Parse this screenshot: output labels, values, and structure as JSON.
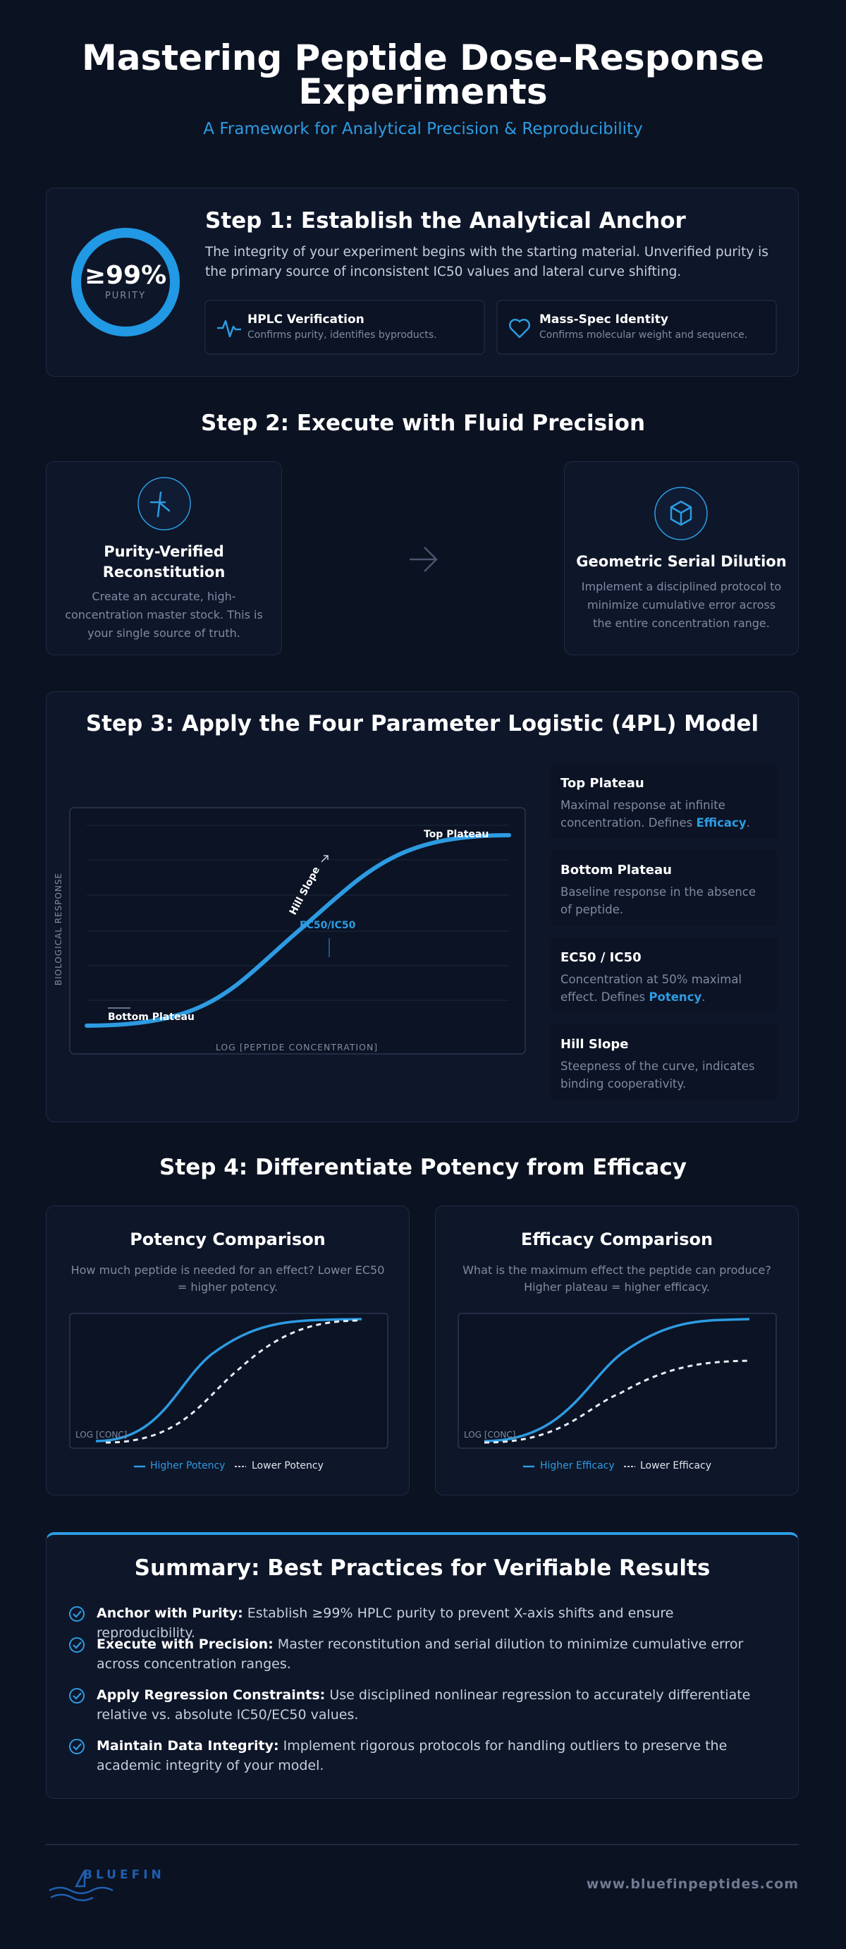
{
  "header": {
    "title": "Mastering Peptide Dose-Response Experiments",
    "subtitle": "A Framework for Analytical Precision & Reproducibility"
  },
  "step1": {
    "badge_value": "≥99%",
    "badge_label": "PURITY",
    "title": "Step 1: Establish the Analytical Anchor",
    "body": "The integrity of your experiment begins with the starting material. Unverified purity is the primary source of inconsistent IC50 values and lateral curve shifting.",
    "features": [
      {
        "title": "HPLC Verification",
        "text": "Confirms purity, identifies byproducts."
      },
      {
        "title": "Mass-Spec Identity",
        "text": "Confirms molecular weight and sequence."
      }
    ]
  },
  "step2": {
    "title": "Step 2: Execute with Fluid Precision",
    "cards": [
      {
        "title": "Purity-Verified Reconstitution",
        "text": "Create an accurate, high-concentration master stock. This is your single source of truth."
      },
      {
        "title": "Geometric Serial Dilution",
        "text": "Implement a disciplined protocol to minimize cumulative error across the entire concentration range."
      }
    ]
  },
  "step3": {
    "title": "Step 3: Apply the Four Parameter Logistic (4PL) Model",
    "chart": {
      "y_label": "BIOLOGICAL RESPONSE",
      "x_label": "LOG [PEPTIDE CONCENTRATION]",
      "top_label": "Top Plateau",
      "hill_label": "Hill Slope",
      "ec50_label": "EC50/IC50",
      "bottom_label": "Bottom Plateau"
    },
    "parameters": [
      {
        "title": "Top Plateau",
        "text": "Maximal response at infinite concentration. Defines ",
        "highlight": "Efficacy",
        "end": "."
      },
      {
        "title": "Bottom Plateau",
        "text": "Baseline response in the absence of peptide."
      },
      {
        "title": "EC50 / IC50",
        "text": "Concentration at 50% maximal effect. Defines ",
        "highlight": "Potency",
        "end": "."
      },
      {
        "title": "Hill Slope",
        "text": "Steepness of the curve, indicates binding cooperativity."
      }
    ]
  },
  "step4": {
    "title": "Step 4: Differentiate Potency from Efficacy",
    "cards": [
      {
        "title": "Potency Comparison",
        "text": "How much peptide is needed for an effect? Lower EC50 = higher potency.",
        "axis_label": "LOG [CONC]",
        "legend": [
          "Higher Potency",
          "Lower Potency"
        ]
      },
      {
        "title": "Efficacy Comparison",
        "text": "What is the maximum effect the peptide can produce? Higher plateau = higher efficacy.",
        "axis_label": "LOG [CONC]",
        "legend": [
          "Higher Efficacy",
          "Lower Efficacy"
        ]
      }
    ]
  },
  "summary": {
    "title": "Summary: Best Practices for Verifiable Results",
    "items": [
      {
        "label": "Anchor with Purity:",
        "text": "Establish ≥99% HPLC purity to prevent X-axis shifts and ensure reproducibility."
      },
      {
        "label": "Execute with Precision:",
        "text": "Master reconstitution and serial dilution to minimize cumulative error across concentration ranges."
      },
      {
        "label": "Apply Regression Constraints:",
        "text": "Use disciplined nonlinear regression to accurately differentiate relative vs. absolute IC50/EC50 values."
      },
      {
        "label": "Maintain Data Integrity:",
        "text": "Implement rigorous protocols for handling outliers to preserve the academic integrity of your model."
      }
    ]
  },
  "footer": {
    "brand": "BLUEFIN",
    "url": "www.bluefinpeptides.com"
  }
}
